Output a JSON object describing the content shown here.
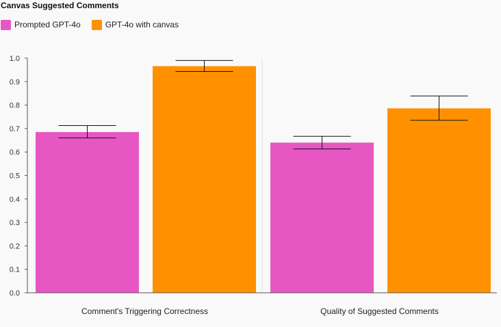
{
  "title": "Canvas Suggested Comments",
  "chart_data": {
    "type": "bar",
    "title": "Canvas Suggested Comments",
    "categories": [
      "Comment's Triggering Correctness",
      "Quality of Suggested Comments"
    ],
    "series": [
      {
        "name": "Prompted GPT-4o",
        "color": "#e757c4",
        "values": [
          0.685,
          0.64
        ],
        "error_low": [
          0.66,
          0.613
        ],
        "error_high": [
          0.713,
          0.667
        ]
      },
      {
        "name": "GPT-4o with canvas",
        "color": "#ff9100",
        "values": [
          0.966,
          0.786
        ],
        "error_low": [
          0.943,
          0.735
        ],
        "error_high": [
          0.99,
          0.839
        ]
      }
    ],
    "ylim": [
      0,
      1.0
    ],
    "yticks": [
      "0.0",
      "0.1",
      "0.2",
      "0.3",
      "0.4",
      "0.5",
      "0.6",
      "0.7",
      "0.8",
      "0.9",
      "1.0"
    ],
    "xlabel": "",
    "ylabel": "",
    "grid": false,
    "legend_position": "top-left",
    "error_bars": true
  }
}
